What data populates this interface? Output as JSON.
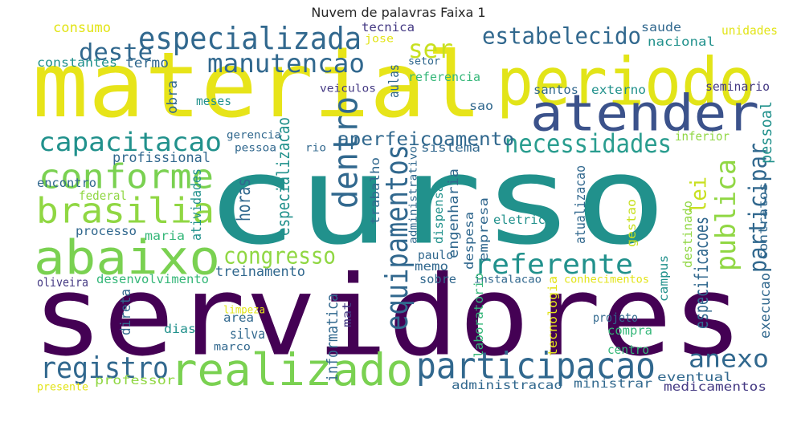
{
  "chart_data": {
    "type": "wordcloud",
    "title": "Nuvem de palavras Faixa 1",
    "colors": {
      "purple": "#440154",
      "blue": "#31688e",
      "green": "#35b779",
      "teal": "#21918c",
      "lime": "#90d743",
      "yellow": "#fde725",
      "navy": "#3b528b",
      "indigo": "#443983"
    },
    "words": [
      {
        "text": "curso",
        "color": "#21918c",
        "vertical": false
      },
      {
        "text": "servidores",
        "color": "#440154",
        "vertical": false
      },
      {
        "text": "material",
        "color": "#e7e419",
        "vertical": false
      },
      {
        "text": "periodo",
        "color": "#e2e418",
        "vertical": false
      },
      {
        "text": "atender",
        "color": "#3b528b",
        "vertical": false
      },
      {
        "text": "abaixo",
        "color": "#7ad151",
        "vertical": false
      },
      {
        "text": "realizado",
        "color": "#7ad151",
        "vertical": false
      },
      {
        "text": "participacao",
        "color": "#31688e",
        "vertical": false
      },
      {
        "text": "brasilia",
        "color": "#90d743",
        "vertical": false
      },
      {
        "text": "conforme",
        "color": "#7ad151",
        "vertical": false
      },
      {
        "text": "especializada",
        "color": "#31688e",
        "vertical": false
      },
      {
        "text": "manutencao",
        "color": "#31688e",
        "vertical": false
      },
      {
        "text": "capacitacao",
        "color": "#21918c",
        "vertical": false
      },
      {
        "text": "necessidades",
        "color": "#2a9d8f",
        "vertical": false
      },
      {
        "text": "estabelecido",
        "color": "#31688e",
        "vertical": false
      },
      {
        "text": "referente",
        "color": "#21918c",
        "vertical": false
      },
      {
        "text": "registro",
        "color": "#31688e",
        "vertical": false
      },
      {
        "text": "deste",
        "color": "#31688e",
        "vertical": false
      },
      {
        "text": "ser",
        "color": "#c8e020",
        "vertical": false
      },
      {
        "text": "congresso",
        "color": "#90d743",
        "vertical": false
      },
      {
        "text": "anexo",
        "color": "#31688e",
        "vertical": false
      },
      {
        "text": "dentro",
        "color": "#31688e",
        "vertical": true
      },
      {
        "text": "equipamentos",
        "color": "#31688e",
        "vertical": true
      },
      {
        "text": "lei",
        "color": "#c8e020",
        "vertical": true
      },
      {
        "text": "participar",
        "color": "#31688e",
        "vertical": true
      },
      {
        "text": "publica",
        "color": "#90d743",
        "vertical": true
      },
      {
        "text": "aperfeicoamento",
        "color": "#31688e",
        "vertical": false
      },
      {
        "text": "profissional",
        "color": "#31688e",
        "vertical": false
      },
      {
        "text": "treinamento",
        "color": "#31688e",
        "vertical": false
      },
      {
        "text": "consumo",
        "color": "#e2e418",
        "vertical": false
      },
      {
        "text": "termo",
        "color": "#31688e",
        "vertical": false
      },
      {
        "text": "constantes",
        "color": "#21918c",
        "vertical": false
      },
      {
        "text": "tecnica",
        "color": "#443983",
        "vertical": false
      },
      {
        "text": "saude",
        "color": "#31688e",
        "vertical": false
      },
      {
        "text": "nacional",
        "color": "#21918c",
        "vertical": false
      },
      {
        "text": "unidades",
        "color": "#e2e418",
        "vertical": false
      },
      {
        "text": "jose",
        "color": "#e2e418",
        "vertical": false
      },
      {
        "text": "setor",
        "color": "#31688e",
        "vertical": false
      },
      {
        "text": "aulas",
        "color": "#31688e",
        "vertical": true
      },
      {
        "text": "referencia",
        "color": "#35b779",
        "vertical": false
      },
      {
        "text": "santos",
        "color": "#31688e",
        "vertical": false
      },
      {
        "text": "externo",
        "color": "#21918c",
        "vertical": false
      },
      {
        "text": "seminario",
        "color": "#443983",
        "vertical": false
      },
      {
        "text": "obra",
        "color": "#31688e",
        "vertical": true
      },
      {
        "text": "meses",
        "color": "#21918c",
        "vertical": false
      },
      {
        "text": "veiculos",
        "color": "#443983",
        "vertical": false
      },
      {
        "text": "sao",
        "color": "#31688e",
        "vertical": false
      },
      {
        "text": "gerencia",
        "color": "#31688e",
        "vertical": false
      },
      {
        "text": "pessoa",
        "color": "#31688e",
        "vertical": false
      },
      {
        "text": "rio",
        "color": "#31688e",
        "vertical": false
      },
      {
        "text": "sistema",
        "color": "#31688e",
        "vertical": false
      },
      {
        "text": "inferior",
        "color": "#90d743",
        "vertical": false
      },
      {
        "text": "pessoal",
        "color": "#21918c",
        "vertical": true
      },
      {
        "text": "encontro",
        "color": "#31688e",
        "vertical": false
      },
      {
        "text": "federal",
        "color": "#90d743",
        "vertical": false
      },
      {
        "text": "maria",
        "color": "#35b779",
        "vertical": false
      },
      {
        "text": "processo",
        "color": "#31688e",
        "vertical": false
      },
      {
        "text": "oliveira",
        "color": "#443983",
        "vertical": false
      },
      {
        "text": "desenvolvimento",
        "color": "#35b779",
        "vertical": false
      },
      {
        "text": "horas",
        "color": "#31688e",
        "vertical": true
      },
      {
        "text": "especializacao",
        "color": "#21918c",
        "vertical": true
      },
      {
        "text": "trabalho",
        "color": "#31688e",
        "vertical": true
      },
      {
        "text": "administrativo",
        "color": "#31688e",
        "vertical": true
      },
      {
        "text": "dispensa",
        "color": "#21918c",
        "vertical": true
      },
      {
        "text": "engenharia",
        "color": "#31688e",
        "vertical": true
      },
      {
        "text": "despesa",
        "color": "#31688e",
        "vertical": true
      },
      {
        "text": "empresa",
        "color": "#31688e",
        "vertical": true
      },
      {
        "text": "eletrico",
        "color": "#21918c",
        "vertical": false
      },
      {
        "text": "atualizacao",
        "color": "#31688e",
        "vertical": true
      },
      {
        "text": "gestao",
        "color": "#c8e020",
        "vertical": true
      },
      {
        "text": "destinado",
        "color": "#90d743",
        "vertical": true
      },
      {
        "text": "especificacoes",
        "color": "#31688e",
        "vertical": true
      },
      {
        "text": "contratos",
        "color": "#31688e",
        "vertical": true
      },
      {
        "text": "atividades",
        "color": "#21918c",
        "vertical": true
      },
      {
        "text": "paulo",
        "color": "#31688e",
        "vertical": false
      },
      {
        "text": "memo",
        "color": "#31688e",
        "vertical": false
      },
      {
        "text": "sobre",
        "color": "#31688e",
        "vertical": false
      },
      {
        "text": "instalacao",
        "color": "#31688e",
        "vertical": false
      },
      {
        "text": "conhecimentos",
        "color": "#e2e418",
        "vertical": false
      },
      {
        "text": "campus",
        "color": "#21918c",
        "vertical": true
      },
      {
        "text": "execucao",
        "color": "#31688e",
        "vertical": true
      },
      {
        "text": "direta",
        "color": "#31688e",
        "vertical": true
      },
      {
        "text": "mat",
        "color": "#443983",
        "vertical": true
      },
      {
        "text": "limpeza",
        "color": "#e2e418",
        "vertical": false
      },
      {
        "text": "area",
        "color": "#31688e",
        "vertical": false
      },
      {
        "text": "dias",
        "color": "#21918c",
        "vertical": false
      },
      {
        "text": "silva",
        "color": "#31688e",
        "vertical": false
      },
      {
        "text": "marco",
        "color": "#31688e",
        "vertical": false
      },
      {
        "text": "informatica",
        "color": "#31688e",
        "vertical": true
      },
      {
        "text": "laboratorio",
        "color": "#35b779",
        "vertical": true
      },
      {
        "text": "tecnologia",
        "color": "#e2e418",
        "vertical": true
      },
      {
        "text": "projeto",
        "color": "#31688e",
        "vertical": false
      },
      {
        "text": "compra",
        "color": "#35b779",
        "vertical": false
      },
      {
        "text": "centro",
        "color": "#35b779",
        "vertical": false
      },
      {
        "text": "professor",
        "color": "#90d743",
        "vertical": false
      },
      {
        "text": "presente",
        "color": "#e2e418",
        "vertical": false
      },
      {
        "text": "eventual",
        "color": "#31688e",
        "vertical": false
      },
      {
        "text": "administracao",
        "color": "#31688e",
        "vertical": false
      },
      {
        "text": "ministrar",
        "color": "#31688e",
        "vertical": false
      },
      {
        "text": "medicamentos",
        "color": "#443983",
        "vertical": false
      }
    ]
  }
}
